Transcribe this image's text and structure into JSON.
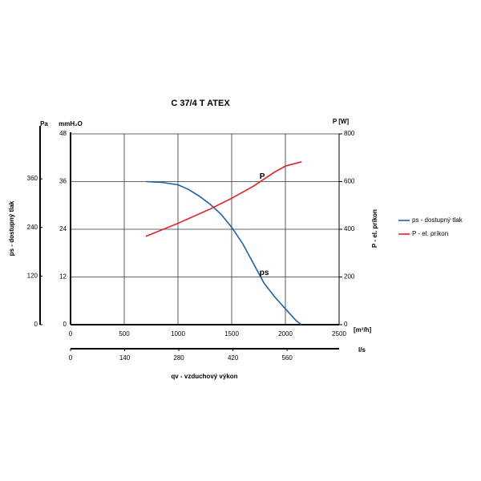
{
  "chart_data": {
    "type": "line",
    "title": "C 37/4 T ATEX",
    "xlabel": "qv - vzduchový výkon",
    "x_unit": "[m³/h]",
    "xlim": [
      0,
      2500
    ],
    "xticks": [
      0,
      500,
      1000,
      1500,
      2000,
      2500
    ],
    "ylabel": "ps - dostupný tlak",
    "y_unit": "mmH₂O",
    "ylim": [
      0,
      48
    ],
    "yticks": [
      0,
      12,
      24,
      36,
      48
    ],
    "y2label": "P - el. príkon",
    "y2_unit": "P [W]",
    "y2lim": [
      0,
      800
    ],
    "y2ticks": [
      0,
      200,
      400,
      600,
      800
    ],
    "pa_axis": {
      "unit": "Pa",
      "lim": [
        0,
        471
      ],
      "ticks": [
        0,
        120,
        240,
        360
      ]
    },
    "x2_axis": {
      "unit": "l/s",
      "lim": [
        0,
        694.4
      ],
      "ticks": [
        0,
        140,
        280,
        420,
        560
      ]
    },
    "grid": true,
    "series": [
      {
        "name": "ps - dostupný tlak",
        "label": "ps",
        "color": "#1f5fa8",
        "x": [
          700,
          850,
          1000,
          1100,
          1200,
          1300,
          1400,
          1500,
          1600,
          1700,
          1800,
          1900,
          2000,
          2100,
          2150
        ],
        "values": [
          36,
          35.8,
          35.2,
          34,
          32.3,
          30.3,
          27.8,
          24.5,
          20.5,
          15.5,
          10.5,
          7,
          4,
          1,
          0
        ]
      },
      {
        "name": "P - el. príkon",
        "label": "P",
        "color": "#e32028",
        "axis": "y2",
        "x": [
          700,
          1000,
          1300,
          1500,
          1700,
          1900,
          2000,
          2150
        ],
        "values": [
          370,
          425,
          485,
          530,
          580,
          640,
          665,
          683
        ]
      }
    ]
  }
}
